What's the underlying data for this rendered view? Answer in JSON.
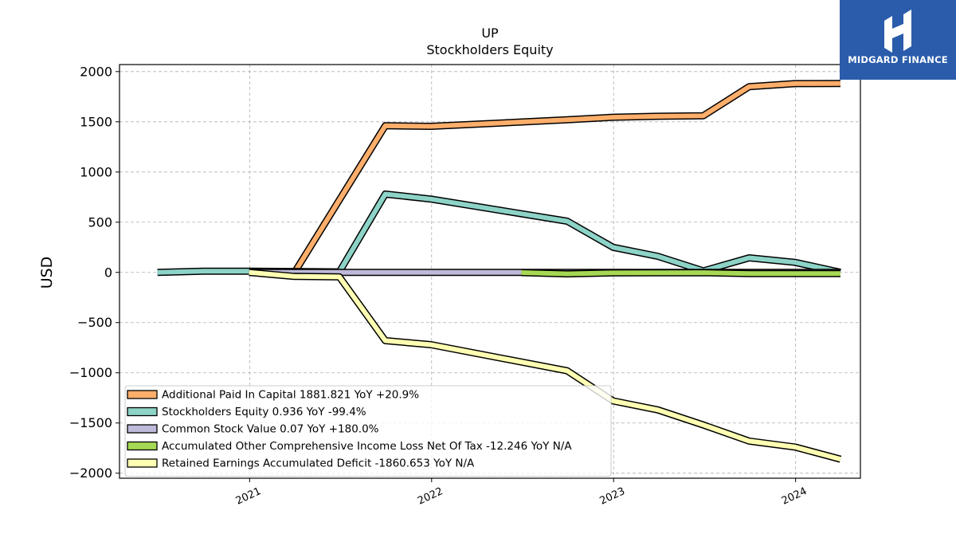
{
  "logo": {
    "text": "MIDGARD FINANCE"
  },
  "chart_data": {
    "type": "line",
    "title": "UP",
    "subtitle": "Stockholders  Equity",
    "ylabel": "USD",
    "xlabel": "",
    "xlim": [
      "2020-04-15",
      "2024-05-10"
    ],
    "ylim": [
      -2050,
      2070
    ],
    "yticks": [
      2000,
      1500,
      1000,
      500,
      0,
      -500,
      -1000,
      -1500,
      -2000
    ],
    "ytick_labels": [
      "2000",
      "1500",
      "1000",
      "500",
      "0",
      "−500",
      "−1000",
      "−1500",
      "−2000"
    ],
    "xticks": [
      "2021-01-01",
      "2022-01-01",
      "2023-01-01",
      "2024-01-01"
    ],
    "xtick_labels": [
      "2021",
      "2022",
      "2023",
      "2024"
    ],
    "grid": true,
    "legend_position": "lower-left",
    "series": [
      {
        "name": "Additional Paid In Capital  1881.821 YoY +20.9%",
        "color": "#fdae6b",
        "points": [
          [
            "2021-04-01",
            0
          ],
          [
            "2021-09-30",
            1460
          ],
          [
            "2021-12-31",
            1455
          ],
          [
            "2022-09-30",
            1520
          ],
          [
            "2022-12-31",
            1545
          ],
          [
            "2023-03-31",
            1555
          ],
          [
            "2023-06-30",
            1560
          ],
          [
            "2023-09-30",
            1850
          ],
          [
            "2023-12-31",
            1880
          ],
          [
            "2024-03-31",
            1882
          ]
        ]
      },
      {
        "name": "Stockholders Equity  0.936 YoY -99.4%",
        "color": "#8dd3c7",
        "points": [
          [
            "2020-06-30",
            0
          ],
          [
            "2020-09-30",
            12
          ],
          [
            "2020-12-31",
            12
          ],
          [
            "2021-06-30",
            5
          ],
          [
            "2021-09-30",
            780
          ],
          [
            "2021-12-31",
            730
          ],
          [
            "2022-09-30",
            510
          ],
          [
            "2022-12-31",
            250
          ],
          [
            "2023-03-31",
            160
          ],
          [
            "2023-06-30",
            15
          ],
          [
            "2023-09-30",
            145
          ],
          [
            "2023-12-31",
            100
          ],
          [
            "2024-03-31",
            1
          ]
        ]
      },
      {
        "name": "Common Stock Value  0.07 YoY +180.0%",
        "color": "#bebada",
        "points": [
          [
            "2020-12-31",
            0
          ],
          [
            "2024-03-31",
            0.07
          ]
        ]
      },
      {
        "name": "Accumulated Other Comprehensive Income Loss Net Of Tax  -12.246 YoY N/A",
        "color": "#a6d854",
        "points": [
          [
            "2022-06-30",
            -2
          ],
          [
            "2022-09-30",
            -15
          ],
          [
            "2022-12-31",
            -5
          ],
          [
            "2023-06-30",
            -3
          ],
          [
            "2023-09-30",
            -12
          ],
          [
            "2024-03-31",
            -12
          ]
        ]
      },
      {
        "name": "Retained Earnings Accumulated Deficit  -1860.653 YoY N/A",
        "color": "#ffffb3",
        "points": [
          [
            "2020-12-31",
            0
          ],
          [
            "2021-03-31",
            -40
          ],
          [
            "2021-06-30",
            -45
          ],
          [
            "2021-09-30",
            -680
          ],
          [
            "2021-12-31",
            -720
          ],
          [
            "2022-09-30",
            -980
          ],
          [
            "2022-12-31",
            -1280
          ],
          [
            "2023-03-31",
            -1370
          ],
          [
            "2023-06-30",
            -1520
          ],
          [
            "2023-09-30",
            -1680
          ],
          [
            "2023-12-31",
            -1740
          ],
          [
            "2024-03-31",
            -1860
          ]
        ]
      }
    ]
  }
}
